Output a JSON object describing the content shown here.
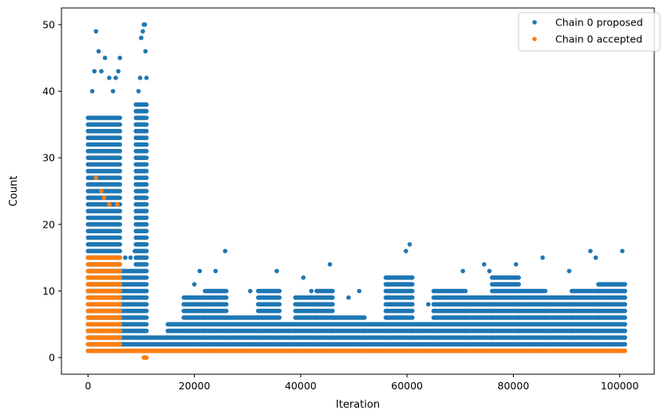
{
  "chart_data": {
    "type": "scatter",
    "xlabel": "Iteration",
    "ylabel": "Count",
    "xlim": [
      -5000,
      106500
    ],
    "ylim": [
      -2.5,
      52.5
    ],
    "xticks": [
      0,
      20000,
      40000,
      60000,
      80000,
      100000
    ],
    "yticks": [
      0,
      10,
      20,
      30,
      40,
      50
    ],
    "grid": false,
    "legend_position": "top-right",
    "series": [
      {
        "name": "Chain 0 proposed",
        "color": "#1f77b4",
        "marker": "circle",
        "columns": [
          {
            "x": [
              0,
              6000
            ],
            "y_min": 1,
            "y_max": 36,
            "outliers": [
              [
                800,
                40
              ],
              [
                1200,
                43
              ],
              [
                1500,
                49
              ],
              [
                2000,
                46
              ],
              [
                2500,
                43
              ],
              [
                3200,
                45
              ],
              [
                4000,
                42
              ],
              [
                4700,
                40
              ],
              [
                5200,
                42
              ],
              [
                5700,
                43
              ],
              [
                6000,
                45
              ]
            ]
          },
          {
            "x": [
              6000,
              9000
            ],
            "y_min": 1,
            "y_max": 13,
            "outliers": [
              [
                7000,
                15
              ],
              [
                8000,
                15
              ],
              [
                8800,
                16
              ]
            ]
          },
          {
            "x": [
              9000,
              11000
            ],
            "y_min": 1,
            "y_max": 38,
            "outliers": [
              [
                9500,
                40
              ],
              [
                9800,
                42
              ],
              [
                10000,
                48
              ],
              [
                10300,
                49
              ],
              [
                10500,
                50
              ],
              [
                10700,
                50
              ],
              [
                10800,
                46
              ],
              [
                11000,
                42
              ]
            ]
          },
          {
            "x": [
              11000,
              15000
            ],
            "y_min": 1,
            "y_max": 3
          },
          {
            "x": [
              15000,
              18000
            ],
            "y_min": 1,
            "y_max": 5
          },
          {
            "x": [
              18000,
              22000
            ],
            "y_min": 1,
            "y_max": 9,
            "outliers": [
              [
                20000,
                11
              ],
              [
                21000,
                13
              ]
            ]
          },
          {
            "x": [
              22000,
              26000
            ],
            "y_min": 1,
            "y_max": 10,
            "outliers": [
              [
                24000,
                13
              ],
              [
                25800,
                16
              ]
            ]
          },
          {
            "x": [
              26000,
              32000
            ],
            "y_min": 1,
            "y_max": 6,
            "outliers": [
              [
                30500,
                10
              ]
            ]
          },
          {
            "x": [
              32000,
              36000
            ],
            "y_min": 1,
            "y_max": 10,
            "outliers": [
              [
                35500,
                13
              ]
            ]
          },
          {
            "x": [
              36000,
              39000
            ],
            "y_min": 1,
            "y_max": 5
          },
          {
            "x": [
              39000,
              43000
            ],
            "y_min": 1,
            "y_max": 9,
            "outliers": [
              [
                40500,
                12
              ],
              [
                42000,
                10
              ]
            ]
          },
          {
            "x": [
              43000,
              46000
            ],
            "y_min": 1,
            "y_max": 10,
            "outliers": [
              [
                45500,
                14
              ]
            ]
          },
          {
            "x": [
              46000,
              52000
            ],
            "y_min": 1,
            "y_max": 6,
            "outliers": [
              [
                49000,
                9
              ],
              [
                51000,
                10
              ]
            ]
          },
          {
            "x": [
              52000,
              56000
            ],
            "y_min": 1,
            "y_max": 5
          },
          {
            "x": [
              56000,
              61000
            ],
            "y_min": 1,
            "y_max": 12,
            "outliers": [
              [
                57500,
                11
              ],
              [
                59800,
                16
              ],
              [
                60500,
                17
              ]
            ]
          },
          {
            "x": [
              61000,
              65000
            ],
            "y_min": 1,
            "y_max": 5,
            "outliers": [
              [
                64000,
                8
              ]
            ]
          },
          {
            "x": [
              65000,
              71000
            ],
            "y_min": 1,
            "y_max": 10,
            "outliers": [
              [
                66000,
                9
              ],
              [
                70500,
                13
              ]
            ]
          },
          {
            "x": [
              71000,
              76000
            ],
            "y_min": 1,
            "y_max": 9,
            "outliers": [
              [
                74500,
                14
              ],
              [
                75500,
                13
              ]
            ]
          },
          {
            "x": [
              76000,
              81000
            ],
            "y_min": 1,
            "y_max": 12,
            "outliers": [
              [
                80500,
                14
              ]
            ]
          },
          {
            "x": [
              81000,
              86000
            ],
            "y_min": 1,
            "y_max": 10,
            "outliers": [
              [
                85500,
                15
              ]
            ]
          },
          {
            "x": [
              86000,
              91000
            ],
            "y_min": 1,
            "y_max": 9,
            "outliers": [
              [
                90500,
                13
              ]
            ]
          },
          {
            "x": [
              91000,
              96000
            ],
            "y_min": 1,
            "y_max": 10,
            "outliers": [
              [
                94500,
                16
              ],
              [
                95500,
                15
              ]
            ]
          },
          {
            "x": [
              96000,
              101000
            ],
            "y_min": 1,
            "y_max": 11,
            "outliers": [
              [
                100500,
                16
              ]
            ]
          }
        ]
      },
      {
        "name": "Chain 0 accepted",
        "color": "#ff7f0e",
        "marker": "circle",
        "columns": [
          {
            "x": [
              0,
              6000
            ],
            "y_min": 1,
            "y_max": 15,
            "outliers": [
              [
                1500,
                27
              ],
              [
                2500,
                25
              ],
              [
                3000,
                24
              ],
              [
                4000,
                23
              ],
              [
                5500,
                23
              ]
            ]
          },
          {
            "x": [
              6000,
              101000
            ],
            "y_min": 1,
            "y_max": 1
          },
          {
            "x": [
              10500,
              11000
            ],
            "y_min": 0,
            "y_max": 0
          }
        ]
      }
    ]
  }
}
